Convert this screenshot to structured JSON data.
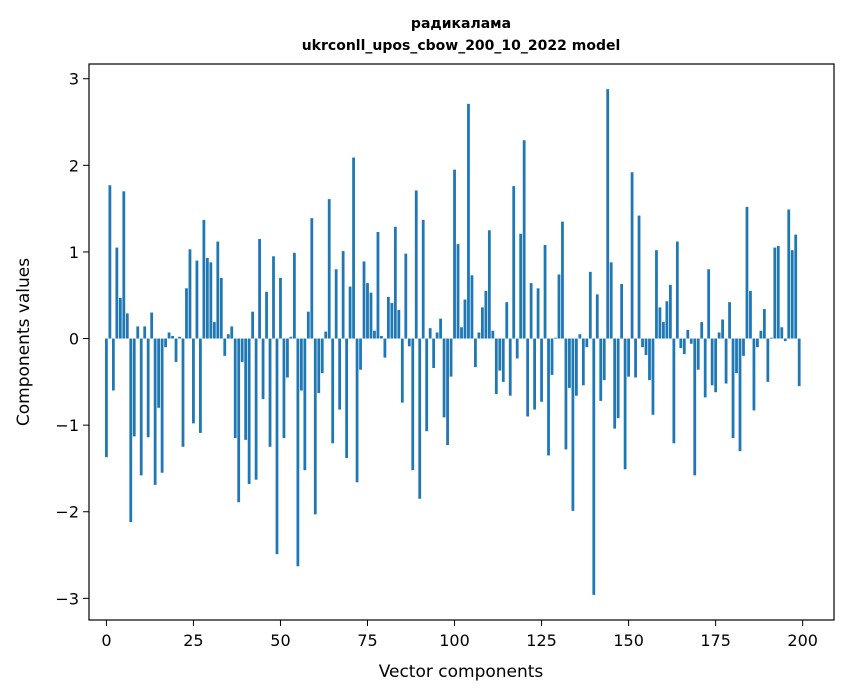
{
  "chart_data": {
    "type": "bar",
    "title_line1": "радикалама",
    "title_line2": "ukrconll_upos_cbow_200_10_2022 model",
    "xlabel": "Vector components",
    "ylabel": "Components values",
    "xlim": [
      -5,
      209
    ],
    "ylim": [
      -3.25,
      3.17
    ],
    "xticks": [
      0,
      25,
      50,
      75,
      100,
      125,
      150,
      175,
      200
    ],
    "yticks": [
      -3,
      -2,
      -1,
      0,
      1,
      2,
      3
    ],
    "bar_color": "#1f77b4",
    "grid": false,
    "legend": "none",
    "values": [
      -1.37,
      1.77,
      -0.6,
      1.05,
      0.47,
      1.7,
      0.29,
      -2.12,
      -1.13,
      0.14,
      -1.58,
      0.14,
      -1.14,
      0.3,
      -1.69,
      -0.8,
      -1.55,
      -0.1,
      0.07,
      0.03,
      -0.27,
      0.02,
      -1.25,
      0.58,
      1.03,
      -0.98,
      0.9,
      -1.09,
      1.37,
      0.93,
      0.88,
      0.19,
      1.12,
      0.7,
      -0.2,
      0.05,
      0.14,
      -1.15,
      -1.89,
      -0.27,
      -1.17,
      -1.68,
      0.31,
      -1.63,
      1.15,
      -0.7,
      0.54,
      -1.25,
      0.95,
      -2.49,
      0.7,
      -1.15,
      -0.45,
      0.02,
      0.99,
      -2.63,
      -0.6,
      -1.52,
      0.31,
      1.39,
      -2.03,
      -0.63,
      -0.4,
      0.08,
      1.61,
      -1.21,
      0.8,
      -0.82,
      1.01,
      -1.38,
      0.6,
      2.09,
      -1.66,
      -0.36,
      0.89,
      0.64,
      0.53,
      0.09,
      1.23,
      0.03,
      -0.22,
      0.48,
      0.41,
      1.29,
      0.33,
      -0.74,
      0.98,
      -0.09,
      -1.52,
      1.71,
      -1.85,
      1.37,
      -1.07,
      0.12,
      -0.34,
      0.07,
      0.23,
      -0.91,
      -1.23,
      -0.44,
      1.95,
      1.09,
      0.13,
      0.45,
      2.71,
      0.73,
      -0.33,
      0.07,
      0.36,
      0.55,
      1.25,
      0.09,
      -0.64,
      -0.37,
      -0.5,
      0.42,
      -0.66,
      1.76,
      -0.23,
      1.21,
      2.29,
      -0.9,
      0.64,
      -0.82,
      0.58,
      -0.73,
      1.08,
      -1.35,
      -0.42,
      0.01,
      0.74,
      1.35,
      -1.28,
      -0.57,
      -1.99,
      -0.66,
      0.05,
      -0.54,
      -0.1,
      0.77,
      -2.96,
      0.51,
      -0.72,
      -0.48,
      2.88,
      0.88,
      -1.04,
      -0.92,
      0.63,
      -1.51,
      -0.44,
      1.92,
      -0.45,
      1.42,
      -0.1,
      -0.19,
      -0.48,
      -0.88,
      1.02,
      0.36,
      0.19,
      0.43,
      0.62,
      -1.21,
      1.12,
      -0.11,
      -0.18,
      0.1,
      -0.06,
      -1.58,
      -0.36,
      0.19,
      -0.68,
      0.8,
      -0.54,
      -0.62,
      0.07,
      0.22,
      -0.52,
      0.42,
      -1.15,
      -0.4,
      -1.3,
      -0.2,
      1.52,
      0.55,
      -0.83,
      -0.1,
      0.09,
      0.34,
      -0.5,
      0.01,
      1.05,
      1.07,
      0.13,
      -0.03,
      1.49,
      1.02,
      1.2,
      -0.55
    ]
  }
}
